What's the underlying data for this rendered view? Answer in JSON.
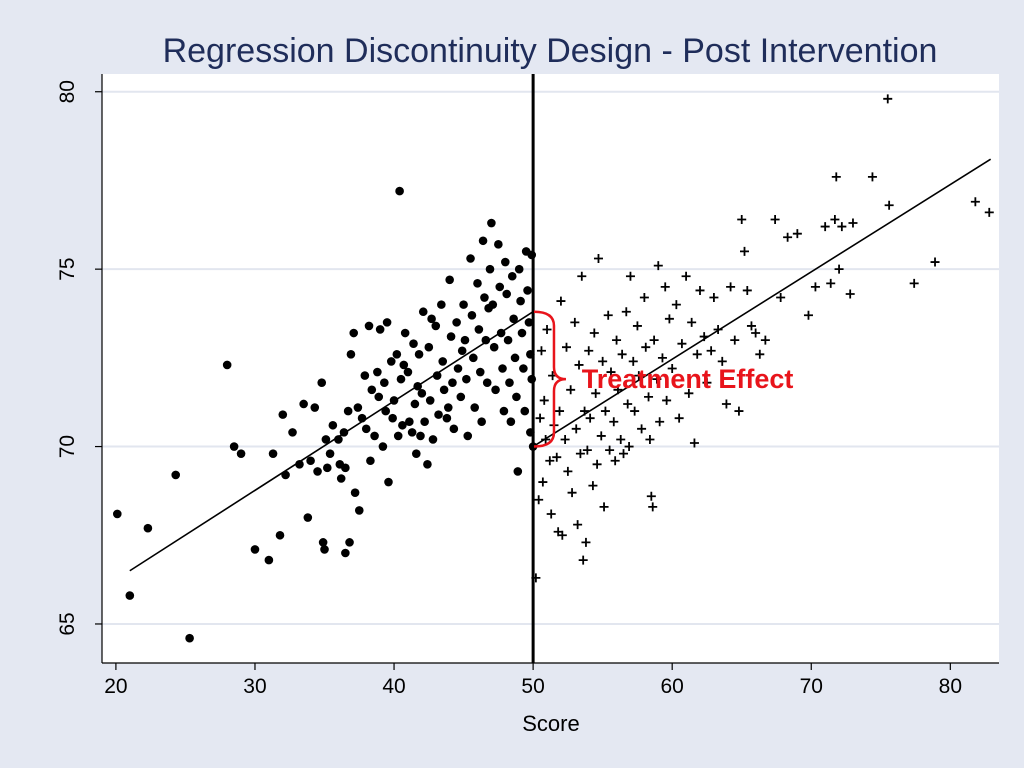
{
  "chart_data": {
    "type": "scatter",
    "title": "Regression Discontinuity Design - Post Intervention",
    "xlabel": "Score",
    "ylabel": "",
    "xlim": [
      19,
      83.5
    ],
    "ylim": [
      63.9,
      80.5
    ],
    "xticks": [
      20,
      30,
      40,
      50,
      60,
      70,
      80
    ],
    "yticks": [
      65,
      70,
      75,
      80
    ],
    "grid": true,
    "cutoff": 50,
    "annotation": {
      "text": "Treatment Effect",
      "x": 53.5,
      "y": 71.9,
      "bracket_x": 51.5,
      "bracket_y": [
        70,
        73.8
      ]
    },
    "fit_lines": [
      {
        "name": "",
        "x": [
          21,
          50
        ],
        "y": [
          66.5,
          73.8
        ]
      },
      {
        "name": "",
        "x": [
          50,
          82.9
        ],
        "y": [
          70.0,
          78.1
        ]
      }
    ],
    "series": [
      {
        "name": "",
        "marker": "dot",
        "points": [
          [
            20.1,
            68.1
          ],
          [
            21.0,
            65.8
          ],
          [
            22.3,
            67.7
          ],
          [
            24.3,
            69.2
          ],
          [
            25.3,
            64.6
          ],
          [
            28.0,
            72.3
          ],
          [
            28.5,
            70.0
          ],
          [
            29.0,
            69.8
          ],
          [
            30.0,
            67.1
          ],
          [
            31.0,
            66.8
          ],
          [
            31.3,
            69.8
          ],
          [
            31.8,
            67.5
          ],
          [
            32.0,
            70.9
          ],
          [
            32.2,
            69.2
          ],
          [
            32.7,
            70.4
          ],
          [
            33.2,
            69.5
          ],
          [
            33.5,
            71.2
          ],
          [
            33.8,
            68.0
          ],
          [
            34.0,
            69.6
          ],
          [
            34.3,
            71.1
          ],
          [
            34.5,
            69.3
          ],
          [
            34.8,
            71.8
          ],
          [
            34.9,
            67.3
          ],
          [
            35.0,
            67.1
          ],
          [
            35.1,
            70.2
          ],
          [
            35.2,
            69.4
          ],
          [
            35.4,
            69.8
          ],
          [
            35.6,
            70.6
          ],
          [
            36.0,
            70.2
          ],
          [
            36.1,
            69.5
          ],
          [
            36.2,
            69.1
          ],
          [
            36.4,
            70.4
          ],
          [
            36.5,
            69.4
          ],
          [
            36.5,
            67.0
          ],
          [
            36.7,
            71.0
          ],
          [
            36.8,
            67.3
          ],
          [
            36.9,
            72.6
          ],
          [
            37.1,
            73.2
          ],
          [
            37.2,
            68.7
          ],
          [
            37.4,
            71.1
          ],
          [
            37.5,
            68.2
          ],
          [
            37.7,
            70.8
          ],
          [
            37.9,
            72.0
          ],
          [
            38.0,
            70.5
          ],
          [
            38.2,
            73.4
          ],
          [
            38.3,
            69.6
          ],
          [
            38.4,
            71.6
          ],
          [
            38.6,
            70.3
          ],
          [
            38.8,
            72.1
          ],
          [
            38.9,
            71.4
          ],
          [
            39.0,
            73.3
          ],
          [
            39.2,
            70.0
          ],
          [
            39.3,
            71.8
          ],
          [
            39.5,
            73.5
          ],
          [
            39.6,
            69.0
          ],
          [
            39.8,
            72.4
          ],
          [
            39.9,
            70.8
          ],
          [
            40.0,
            71.3
          ],
          [
            40.2,
            72.6
          ],
          [
            40.3,
            70.3
          ],
          [
            40.4,
            77.2
          ],
          [
            40.5,
            71.9
          ],
          [
            40.6,
            70.6
          ],
          [
            40.8,
            73.2
          ],
          [
            41.0,
            72.1
          ],
          [
            41.1,
            70.7
          ],
          [
            41.3,
            70.4
          ],
          [
            41.4,
            72.9
          ],
          [
            41.5,
            71.2
          ],
          [
            41.6,
            69.8
          ],
          [
            41.8,
            72.6
          ],
          [
            41.9,
            70.3
          ],
          [
            42.0,
            71.5
          ],
          [
            42.1,
            73.8
          ],
          [
            42.2,
            70.7
          ],
          [
            42.4,
            69.5
          ],
          [
            42.5,
            72.8
          ],
          [
            42.6,
            71.3
          ],
          [
            42.8,
            70.2
          ],
          [
            43.0,
            73.4
          ],
          [
            43.1,
            72.0
          ],
          [
            43.2,
            70.9
          ],
          [
            43.4,
            74.0
          ],
          [
            43.5,
            72.4
          ],
          [
            43.6,
            71.6
          ],
          [
            43.8,
            70.8
          ],
          [
            44.0,
            74.7
          ],
          [
            44.1,
            73.1
          ],
          [
            44.2,
            71.8
          ],
          [
            44.3,
            70.5
          ],
          [
            44.5,
            73.5
          ],
          [
            44.6,
            72.2
          ],
          [
            44.8,
            71.4
          ],
          [
            45.0,
            74.0
          ],
          [
            45.1,
            73.0
          ],
          [
            45.2,
            71.9
          ],
          [
            45.3,
            70.3
          ],
          [
            45.5,
            75.3
          ],
          [
            45.6,
            73.7
          ],
          [
            45.7,
            72.5
          ],
          [
            45.8,
            71.1
          ],
          [
            46.0,
            74.6
          ],
          [
            46.1,
            73.3
          ],
          [
            46.2,
            72.1
          ],
          [
            46.3,
            70.7
          ],
          [
            46.4,
            75.8
          ],
          [
            46.5,
            74.2
          ],
          [
            46.6,
            73.0
          ],
          [
            46.7,
            71.8
          ],
          [
            46.9,
            75.0
          ],
          [
            47.0,
            76.3
          ],
          [
            47.1,
            74.0
          ],
          [
            47.2,
            72.8
          ],
          [
            47.3,
            71.6
          ],
          [
            47.5,
            75.7
          ],
          [
            47.6,
            74.5
          ],
          [
            47.7,
            73.2
          ],
          [
            47.8,
            72.2
          ],
          [
            47.9,
            71.0
          ],
          [
            48.0,
            75.2
          ],
          [
            48.1,
            74.3
          ],
          [
            48.2,
            73.0
          ],
          [
            48.3,
            71.8
          ],
          [
            48.4,
            70.7
          ],
          [
            48.5,
            74.8
          ],
          [
            48.6,
            73.6
          ],
          [
            48.7,
            72.5
          ],
          [
            48.8,
            71.4
          ],
          [
            48.9,
            69.3
          ],
          [
            49.0,
            75.0
          ],
          [
            49.1,
            74.1
          ],
          [
            49.2,
            73.2
          ],
          [
            49.3,
            72.2
          ],
          [
            49.4,
            71.0
          ],
          [
            49.5,
            75.5
          ],
          [
            49.6,
            74.4
          ],
          [
            49.7,
            73.5
          ],
          [
            49.8,
            72.6
          ],
          [
            49.9,
            71.9
          ],
          [
            50.0,
            70.0
          ],
          [
            49.9,
            75.4
          ],
          [
            49.8,
            70.4
          ],
          [
            46.8,
            73.9
          ],
          [
            44.9,
            72.7
          ],
          [
            43.9,
            71.1
          ],
          [
            42.7,
            73.6
          ],
          [
            41.7,
            71.7
          ],
          [
            40.7,
            72.3
          ],
          [
            39.4,
            71.0
          ]
        ]
      },
      {
        "name": "",
        "marker": "plus",
        "points": [
          [
            50.2,
            66.3
          ],
          [
            50.4,
            68.5
          ],
          [
            50.5,
            70.8
          ],
          [
            50.6,
            72.7
          ],
          [
            50.7,
            69.0
          ],
          [
            50.8,
            71.3
          ],
          [
            50.9,
            70.2
          ],
          [
            51.0,
            73.3
          ],
          [
            51.2,
            69.6
          ],
          [
            51.3,
            68.1
          ],
          [
            51.4,
            72.0
          ],
          [
            51.5,
            70.6
          ],
          [
            51.7,
            69.7
          ],
          [
            51.8,
            67.6
          ],
          [
            51.9,
            71.0
          ],
          [
            52.0,
            74.1
          ],
          [
            52.1,
            67.5
          ],
          [
            52.3,
            70.2
          ],
          [
            52.4,
            72.8
          ],
          [
            52.5,
            69.3
          ],
          [
            52.7,
            71.6
          ],
          [
            52.8,
            68.7
          ],
          [
            53.0,
            73.5
          ],
          [
            53.1,
            70.5
          ],
          [
            53.2,
            67.8
          ],
          [
            53.3,
            72.3
          ],
          [
            53.4,
            69.8
          ],
          [
            53.5,
            74.8
          ],
          [
            53.6,
            66.8
          ],
          [
            53.7,
            71.0
          ],
          [
            53.8,
            67.3
          ],
          [
            53.9,
            69.9
          ],
          [
            54.0,
            72.7
          ],
          [
            54.1,
            70.8
          ],
          [
            54.3,
            68.9
          ],
          [
            54.4,
            73.2
          ],
          [
            54.5,
            71.5
          ],
          [
            54.6,
            69.5
          ],
          [
            54.7,
            75.3
          ],
          [
            54.9,
            70.3
          ],
          [
            55.0,
            72.4
          ],
          [
            55.1,
            68.3
          ],
          [
            55.2,
            71.0
          ],
          [
            55.4,
            73.7
          ],
          [
            55.5,
            69.9
          ],
          [
            55.6,
            72.1
          ],
          [
            55.8,
            70.7
          ],
          [
            55.9,
            69.6
          ],
          [
            56.0,
            73.0
          ],
          [
            56.1,
            71.6
          ],
          [
            56.3,
            70.2
          ],
          [
            56.4,
            72.6
          ],
          [
            56.5,
            69.8
          ],
          [
            56.7,
            73.8
          ],
          [
            56.8,
            71.2
          ],
          [
            56.9,
            70.0
          ],
          [
            57.0,
            74.8
          ],
          [
            57.2,
            72.4
          ],
          [
            57.3,
            71.0
          ],
          [
            57.5,
            73.4
          ],
          [
            57.6,
            72.0
          ],
          [
            57.8,
            70.5
          ],
          [
            58.0,
            74.2
          ],
          [
            58.1,
            72.8
          ],
          [
            58.3,
            71.4
          ],
          [
            58.4,
            70.2
          ],
          [
            58.5,
            68.6
          ],
          [
            58.6,
            68.3
          ],
          [
            58.7,
            73.0
          ],
          [
            58.9,
            71.9
          ],
          [
            59.0,
            75.1
          ],
          [
            59.1,
            70.7
          ],
          [
            59.3,
            72.5
          ],
          [
            59.5,
            74.5
          ],
          [
            59.6,
            71.3
          ],
          [
            59.8,
            73.6
          ],
          [
            60.0,
            72.2
          ],
          [
            60.3,
            74.0
          ],
          [
            60.5,
            70.8
          ],
          [
            60.7,
            72.9
          ],
          [
            61.0,
            74.8
          ],
          [
            61.2,
            71.5
          ],
          [
            61.4,
            73.5
          ],
          [
            61.6,
            70.1
          ],
          [
            61.8,
            72.6
          ],
          [
            62.0,
            74.4
          ],
          [
            62.3,
            73.1
          ],
          [
            62.5,
            71.8
          ],
          [
            62.8,
            72.7
          ],
          [
            63.0,
            74.2
          ],
          [
            63.3,
            73.3
          ],
          [
            63.6,
            72.4
          ],
          [
            63.9,
            71.2
          ],
          [
            64.2,
            74.5
          ],
          [
            64.5,
            73.0
          ],
          [
            64.8,
            71.0
          ],
          [
            65.0,
            76.4
          ],
          [
            65.2,
            75.5
          ],
          [
            65.4,
            74.4
          ],
          [
            65.7,
            73.4
          ],
          [
            66.0,
            73.2
          ],
          [
            66.3,
            72.6
          ],
          [
            66.7,
            73.0
          ],
          [
            67.4,
            76.4
          ],
          [
            67.8,
            74.2
          ],
          [
            68.3,
            75.9
          ],
          [
            69.0,
            76.0
          ],
          [
            69.8,
            73.7
          ],
          [
            70.3,
            74.5
          ],
          [
            71.0,
            76.2
          ],
          [
            71.4,
            74.6
          ],
          [
            71.7,
            76.4
          ],
          [
            71.8,
            77.6
          ],
          [
            72.0,
            75.0
          ],
          [
            72.2,
            76.2
          ],
          [
            72.8,
            74.3
          ],
          [
            73.0,
            76.3
          ],
          [
            74.4,
            77.6
          ],
          [
            75.5,
            79.8
          ],
          [
            75.6,
            76.8
          ],
          [
            77.4,
            74.6
          ],
          [
            78.9,
            75.2
          ],
          [
            81.8,
            76.9
          ],
          [
            82.8,
            76.6
          ]
        ]
      }
    ]
  }
}
